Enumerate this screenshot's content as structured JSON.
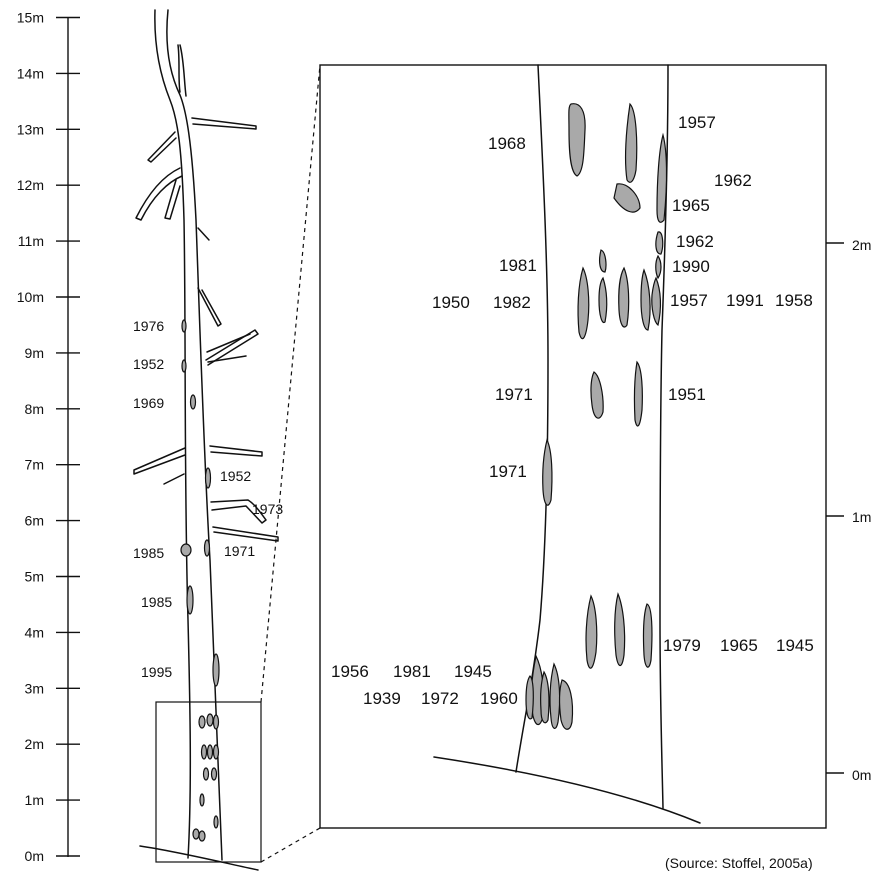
{
  "colors": {
    "ink": "#111111",
    "scar_fill": "#a9a9a9",
    "background": "#ffffff"
  },
  "left_axis": {
    "ticks": [
      "0m",
      "1m",
      "2m",
      "3m",
      "4m",
      "5m",
      "6m",
      "7m",
      "8m",
      "9m",
      "10m",
      "11m",
      "12m",
      "13m",
      "14m",
      "15m"
    ]
  },
  "right_axis": {
    "ticks": [
      "0m",
      "1m",
      "2m"
    ]
  },
  "tree_labels": [
    "1976",
    "1952",
    "1969",
    "1952",
    "1973",
    "1971",
    "1985",
    "1985",
    "1995"
  ],
  "detail_labels": [
    "1968",
    "1957",
    "1962",
    "1965",
    "1962",
    "1981",
    "1990",
    "1950",
    "1982",
    "1957",
    "1991",
    "1958",
    "1971",
    "1951",
    "1971",
    "1979",
    "1965",
    "1945",
    "1956",
    "1981",
    "1945",
    "1939",
    "1972",
    "1960"
  ],
  "source": "(Source: Stoffel, 2005a)"
}
